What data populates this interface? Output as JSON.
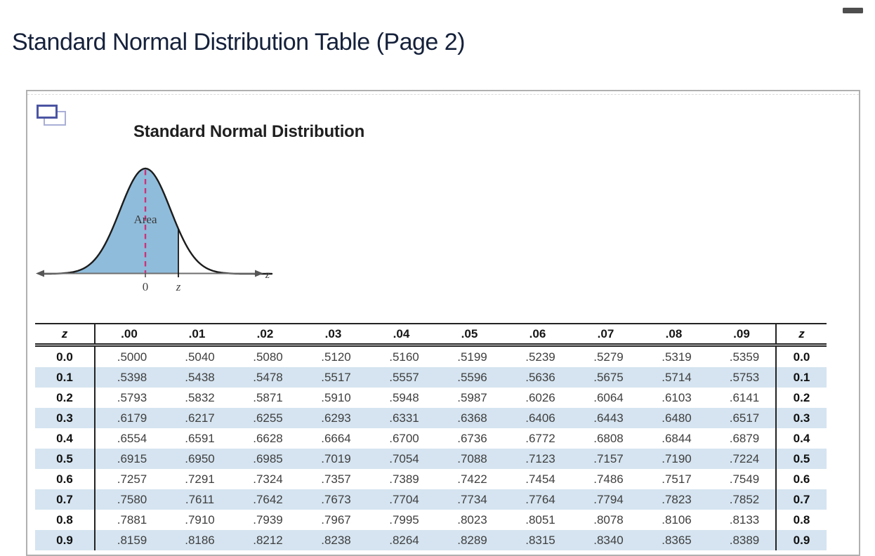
{
  "page": {
    "title": "Standard Normal Distribution Table (Page 2)"
  },
  "icons": {
    "top_right": "minimize-dash",
    "panel_top_left": "overlapping-pages"
  },
  "figure": {
    "heading": "Standard Normal Distribution",
    "area_label": "Area",
    "axis_right_label": "z",
    "tick_zero_label": "0",
    "tick_cutoff_label": "z",
    "curve_fill_color": "#8fbcdb",
    "center_dash_color": "#cc3377",
    "shaded_row_color": "#d5e4f0"
  },
  "table": {
    "col_header_left": "z",
    "col_header_right": "z",
    "col_headers": [
      ".00",
      ".01",
      ".02",
      ".03",
      ".04",
      ".05",
      ".06",
      ".07",
      ".08",
      ".09"
    ],
    "rows": [
      {
        "z": "0.0",
        "shaded": false,
        "values": [
          ".5000",
          ".5040",
          ".5080",
          ".5120",
          ".5160",
          ".5199",
          ".5239",
          ".5279",
          ".5319",
          ".5359"
        ]
      },
      {
        "z": "0.1",
        "shaded": true,
        "values": [
          ".5398",
          ".5438",
          ".5478",
          ".5517",
          ".5557",
          ".5596",
          ".5636",
          ".5675",
          ".5714",
          ".5753"
        ]
      },
      {
        "z": "0.2",
        "shaded": false,
        "values": [
          ".5793",
          ".5832",
          ".5871",
          ".5910",
          ".5948",
          ".5987",
          ".6026",
          ".6064",
          ".6103",
          ".6141"
        ]
      },
      {
        "z": "0.3",
        "shaded": true,
        "values": [
          ".6179",
          ".6217",
          ".6255",
          ".6293",
          ".6331",
          ".6368",
          ".6406",
          ".6443",
          ".6480",
          ".6517"
        ]
      },
      {
        "z": "0.4",
        "shaded": false,
        "values": [
          ".6554",
          ".6591",
          ".6628",
          ".6664",
          ".6700",
          ".6736",
          ".6772",
          ".6808",
          ".6844",
          ".6879"
        ]
      },
      {
        "z": "0.5",
        "shaded": true,
        "values": [
          ".6915",
          ".6950",
          ".6985",
          ".7019",
          ".7054",
          ".7088",
          ".7123",
          ".7157",
          ".7190",
          ".7224"
        ]
      },
      {
        "z": "0.6",
        "shaded": false,
        "values": [
          ".7257",
          ".7291",
          ".7324",
          ".7357",
          ".7389",
          ".7422",
          ".7454",
          ".7486",
          ".7517",
          ".7549"
        ]
      },
      {
        "z": "0.7",
        "shaded": true,
        "values": [
          ".7580",
          ".7611",
          ".7642",
          ".7673",
          ".7704",
          ".7734",
          ".7764",
          ".7794",
          ".7823",
          ".7852"
        ]
      },
      {
        "z": "0.8",
        "shaded": false,
        "values": [
          ".7881",
          ".7910",
          ".7939",
          ".7967",
          ".7995",
          ".8023",
          ".8051",
          ".8078",
          ".8106",
          ".8133"
        ]
      },
      {
        "z": "0.9",
        "shaded": true,
        "values": [
          ".8159",
          ".8186",
          ".8212",
          ".8238",
          ".8264",
          ".8289",
          ".8315",
          ".8340",
          ".8365",
          ".8389"
        ]
      }
    ]
  }
}
